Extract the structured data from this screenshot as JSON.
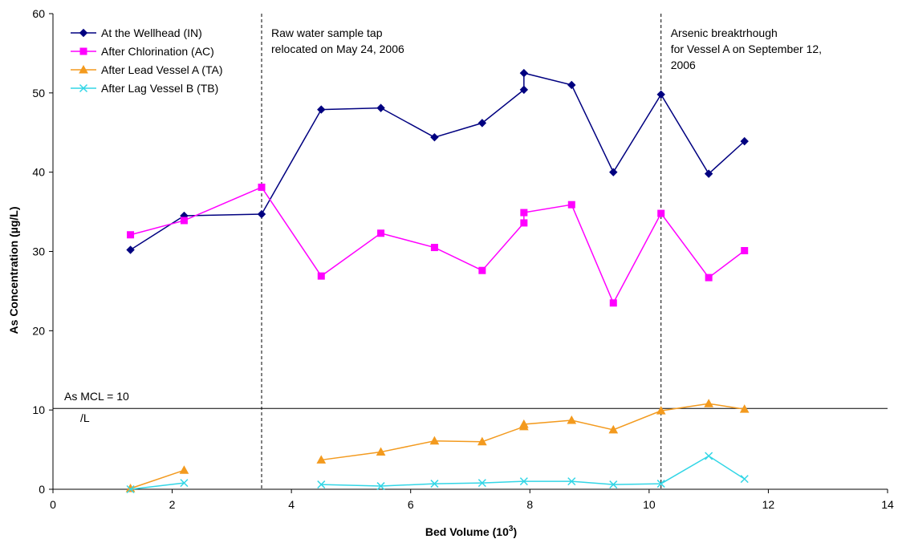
{
  "chart_data": {
    "type": "line",
    "title": "",
    "xlabel": "Bed Volume (10",
    "xlabel_sup": "3",
    "xlabel_tail": ")",
    "ylabel": "As Concentration (µg/L)",
    "xlim": [
      0,
      14
    ],
    "ylim": [
      0,
      60
    ],
    "xticks": [
      0,
      2,
      4,
      6,
      8,
      10,
      12,
      14
    ],
    "yticks": [
      0,
      10,
      20,
      30,
      40,
      50,
      60
    ],
    "grid": false,
    "legend_position": "top-left",
    "series": [
      {
        "name": "At the Wellhead (IN)",
        "color": "#000080",
        "marker": "diamond",
        "segments": [
          [
            [
              1.3,
              30.2
            ],
            [
              2.2,
              34.5
            ],
            [
              3.5,
              34.7
            ],
            [
              4.5,
              47.9
            ],
            [
              5.5,
              48.1
            ],
            [
              6.4,
              44.4
            ],
            [
              7.2,
              46.2
            ],
            [
              7.9,
              50.4
            ],
            [
              7.9,
              52.5
            ],
            [
              8.7,
              51.0
            ],
            [
              9.4,
              40.0
            ],
            [
              10.2,
              49.8
            ],
            [
              11.0,
              39.8
            ],
            [
              11.6,
              43.9
            ]
          ]
        ]
      },
      {
        "name": "After Chlorination (AC)",
        "color": "#FF00FF",
        "marker": "square",
        "segments": [
          [
            [
              1.3,
              32.1
            ],
            [
              2.2,
              33.9
            ],
            [
              3.5,
              38.1
            ],
            [
              4.5,
              26.9
            ],
            [
              5.5,
              32.3
            ],
            [
              6.4,
              30.5
            ],
            [
              7.2,
              27.6
            ],
            [
              7.9,
              33.6
            ],
            [
              7.9,
              34.9
            ],
            [
              8.7,
              35.9
            ],
            [
              9.4,
              23.5
            ],
            [
              10.2,
              34.8
            ],
            [
              11.0,
              26.7
            ],
            [
              11.6,
              30.1
            ]
          ]
        ]
      },
      {
        "name": "After Lead Vessel A (TA)",
        "color": "#F39A1E",
        "marker": "triangle",
        "segments": [
          [
            [
              1.3,
              0.1
            ],
            [
              2.2,
              2.4
            ]
          ],
          [
            [
              4.5,
              3.7
            ],
            [
              5.5,
              4.7
            ],
            [
              6.4,
              6.1
            ],
            [
              7.2,
              6.0
            ],
            [
              7.9,
              7.9
            ],
            [
              7.9,
              8.2
            ],
            [
              8.7,
              8.7
            ],
            [
              9.4,
              7.5
            ],
            [
              10.2,
              9.9
            ],
            [
              11.0,
              10.8
            ],
            [
              11.6,
              10.1
            ]
          ]
        ]
      },
      {
        "name": "After Lag Vessel B (TB)",
        "color": "#33D6E6",
        "marker": "x",
        "segments": [
          [
            [
              1.3,
              0.0
            ],
            [
              2.2,
              0.8
            ]
          ],
          [
            [
              4.5,
              0.6
            ],
            [
              5.5,
              0.4
            ],
            [
              6.4,
              0.7
            ],
            [
              7.2,
              0.8
            ],
            [
              7.9,
              1.0
            ],
            [
              8.7,
              1.0
            ],
            [
              9.4,
              0.6
            ],
            [
              10.2,
              0.7
            ],
            [
              11.0,
              4.2
            ],
            [
              11.6,
              1.3
            ]
          ]
        ]
      }
    ],
    "reference_lines": [
      {
        "orientation": "horizontal",
        "value": 10.2,
        "style": "solid",
        "label": "As MCL = 10",
        "label2": "/L"
      },
      {
        "orientation": "vertical",
        "value": 3.5,
        "style": "dashed",
        "label": "Raw water sample tap",
        "label2": "relocated on May 24, 2006"
      },
      {
        "orientation": "vertical",
        "value": 10.2,
        "style": "dashed",
        "label": "Arsenic breaktrhough",
        "label2": "for Vessel A on September 12,",
        "label3": "2006"
      }
    ]
  }
}
